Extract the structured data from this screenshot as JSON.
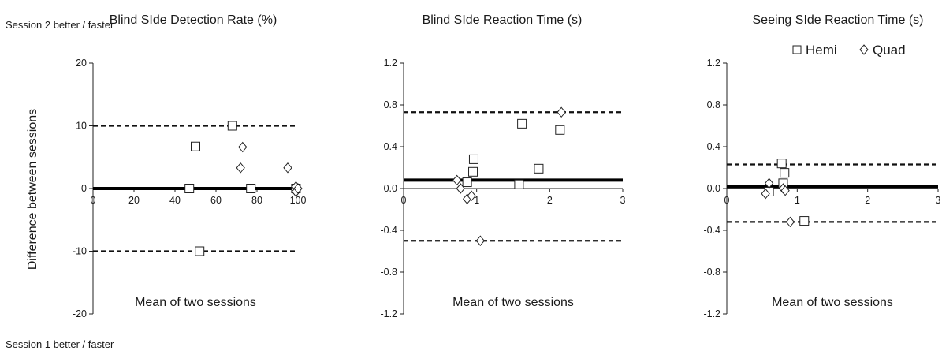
{
  "figure": {
    "ylabel": "Difference between sessions",
    "top_note": "Session 2 better / faster",
    "bottom_note": "Session 1 better / faster",
    "legend": {
      "hemi": "Hemi",
      "quad": "Quad"
    }
  },
  "chart_data": [
    {
      "type": "scatter",
      "title": "Blind SIde Detection Rate (%)",
      "xlabel": "Mean of two sessions",
      "ylabel": "Difference between sessions",
      "xlim": [
        0,
        100
      ],
      "ylim": [
        -20,
        20
      ],
      "x_ticks": [
        0,
        20,
        40,
        60,
        80,
        100
      ],
      "y_ticks": [
        -20,
        -10,
        0,
        10,
        20
      ],
      "x_tick_labels": [
        "0",
        "20",
        "40",
        "60",
        "80",
        "100"
      ],
      "y_tick_labels": [
        "-20",
        "-10",
        "0",
        "10",
        "20"
      ],
      "mean_line": 0,
      "limits_of_agreement": [
        10,
        -10
      ],
      "series": [
        {
          "name": "Hemi",
          "marker": "square",
          "points": [
            [
              47,
              0
            ],
            [
              50,
              6.7
            ],
            [
              68,
              10
            ],
            [
              52,
              -10
            ],
            [
              77,
              0
            ],
            [
              99,
              0
            ]
          ]
        },
        {
          "name": "Quad",
          "marker": "diamond",
          "points": [
            [
              73,
              6.6
            ],
            [
              72,
              3.3
            ],
            [
              95,
              3.3
            ],
            [
              99,
              0.3
            ],
            [
              99,
              -0.5
            ],
            [
              100,
              0
            ]
          ]
        }
      ]
    },
    {
      "type": "scatter",
      "title": "Blind SIde Reaction Time (s)",
      "xlabel": "Mean of two sessions",
      "ylabel": "",
      "xlim": [
        0,
        3
      ],
      "ylim": [
        -1.2,
        1.2
      ],
      "x_ticks": [
        0,
        1,
        2,
        3
      ],
      "y_ticks": [
        -1.2,
        -0.8,
        -0.4,
        0,
        0.4,
        0.8,
        1.2
      ],
      "x_tick_labels": [
        "0",
        "1",
        "2",
        "3"
      ],
      "y_tick_labels": [
        "-1.2",
        "-0.8",
        "-0.4",
        "0.0",
        "0.4",
        "0.8",
        "1.2"
      ],
      "mean_line": 0.08,
      "limits_of_agreement": [
        0.73,
        -0.5
      ],
      "series": [
        {
          "name": "Hemi",
          "marker": "square",
          "points": [
            [
              0.87,
              0.06
            ],
            [
              0.95,
              0.16
            ],
            [
              0.96,
              0.28
            ],
            [
              1.58,
              0.04
            ],
            [
              1.62,
              0.62
            ],
            [
              1.85,
              0.19
            ],
            [
              2.14,
              0.56
            ]
          ]
        },
        {
          "name": "Quad",
          "marker": "diamond",
          "points": [
            [
              0.73,
              0.08
            ],
            [
              0.78,
              0.0
            ],
            [
              0.87,
              -0.1
            ],
            [
              0.93,
              -0.07
            ],
            [
              1.05,
              -0.5
            ],
            [
              2.16,
              0.73
            ]
          ]
        }
      ]
    },
    {
      "type": "scatter",
      "title": "Seeing SIde Reaction Time (s)",
      "xlabel": "Mean of two sessions",
      "ylabel": "",
      "xlim": [
        0,
        3
      ],
      "ylim": [
        -1.2,
        1.2
      ],
      "x_ticks": [
        0,
        1,
        2,
        3
      ],
      "y_ticks": [
        -1.2,
        -0.8,
        -0.4,
        0,
        0.4,
        0.8,
        1.2
      ],
      "x_tick_labels": [
        "0",
        "1",
        "2",
        "3"
      ],
      "y_tick_labels": [
        "-1.2",
        "-0.8",
        "-0.4",
        "0.0",
        "0.4",
        "0.8",
        "1.2"
      ],
      "mean_line": 0.02,
      "limits_of_agreement": [
        0.23,
        -0.32
      ],
      "series": [
        {
          "name": "Hemi",
          "marker": "square",
          "points": [
            [
              0.6,
              -0.03
            ],
            [
              0.78,
              0.24
            ],
            [
              0.8,
              0.05
            ],
            [
              0.82,
              0.15
            ],
            [
              1.1,
              -0.31
            ]
          ]
        },
        {
          "name": "Quad",
          "marker": "diamond",
          "points": [
            [
              0.55,
              -0.05
            ],
            [
              0.6,
              0.05
            ],
            [
              0.8,
              0.0
            ],
            [
              0.83,
              -0.02
            ],
            [
              0.9,
              -0.32
            ]
          ]
        }
      ]
    }
  ]
}
